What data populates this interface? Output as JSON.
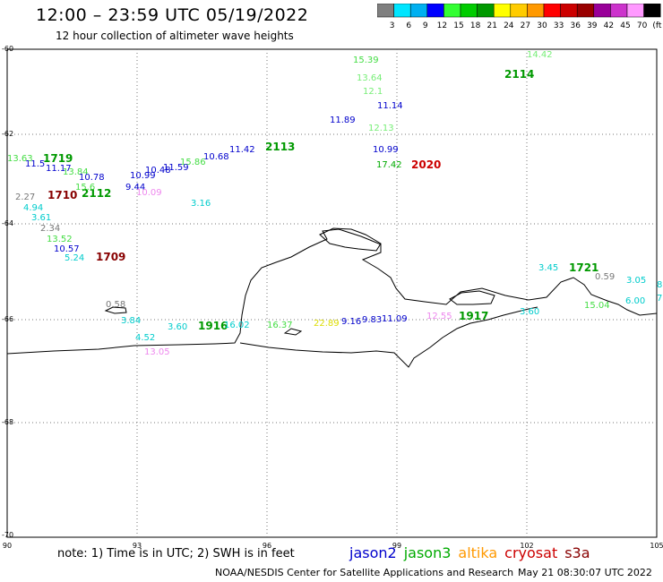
{
  "title": "12:00 – 23:59 UTC 05/19/2022",
  "subtitle": "12 hour collection of altimeter wave heights",
  "colorbar": {
    "colors": [
      "#7f7f7f",
      "#00e5ff",
      "#00b0f0",
      "#0000ff",
      "#33ff33",
      "#00cc00",
      "#009900",
      "#ffff00",
      "#ffcc00",
      "#ff9900",
      "#ff0000",
      "#cc0000",
      "#990000",
      "#990099",
      "#cc33cc",
      "#ff99ff",
      "#000000"
    ],
    "labels": [
      "3",
      "6",
      "9",
      "12",
      "15",
      "18",
      "21",
      "24",
      "27",
      "30",
      "33",
      "36",
      "39",
      "42",
      "45",
      "70",
      "(ft)"
    ]
  },
  "axes": {
    "lat_labels": [
      "-60",
      "-62",
      "-64",
      "-66",
      "-68",
      "-70"
    ],
    "lon_labels": [
      "90",
      "93",
      "96",
      "99",
      "102",
      "105"
    ]
  },
  "points": [
    {
      "t": "15.39",
      "c": "#44dd44"
    },
    {
      "t": "14.42",
      "c": "#77ee77"
    },
    {
      "t": "2114",
      "c": "#009900",
      "b": true
    },
    {
      "t": "13.64",
      "c": "#77ee77"
    },
    {
      "t": "12.1",
      "c": "#77ee77"
    },
    {
      "t": "11.14",
      "c": "#0000cc"
    },
    {
      "t": "11.89",
      "c": "#0000cc"
    },
    {
      "t": "12.13",
      "c": "#77ee77"
    },
    {
      "t": "10.99",
      "c": "#0000cc"
    },
    {
      "t": "17.42",
      "c": "#00aa00"
    },
    {
      "t": "2020",
      "c": "#cc0000",
      "b": true
    },
    {
      "t": "2113",
      "c": "#009900",
      "b": true
    },
    {
      "t": "11.42",
      "c": "#0000cc"
    },
    {
      "t": "10.68",
      "c": "#0000cc"
    },
    {
      "t": "15.86",
      "c": "#44dd44"
    },
    {
      "t": "11.59",
      "c": "#0000cc"
    },
    {
      "t": "10.48",
      "c": "#0000cc"
    },
    {
      "t": "10.99",
      "c": "#0000cc"
    },
    {
      "t": "13.63",
      "c": "#44dd44"
    },
    {
      "t": "1719",
      "c": "#009900",
      "b": true
    },
    {
      "t": "11.5",
      "c": "#0000cc"
    },
    {
      "t": "11.17",
      "c": "#0000cc"
    },
    {
      "t": "13.84",
      "c": "#44dd44"
    },
    {
      "t": "10.78",
      "c": "#0000cc"
    },
    {
      "t": "9.44",
      "c": "#0000cc"
    },
    {
      "t": "10.09",
      "c": "#ee88ee"
    },
    {
      "t": "2.27",
      "c": "#777777"
    },
    {
      "t": "1710",
      "c": "#880000",
      "b": true
    },
    {
      "t": "2112",
      "c": "#009900",
      "b": true
    },
    {
      "t": "15.6",
      "c": "#44dd44"
    },
    {
      "t": "3.16",
      "c": "#00cccc"
    },
    {
      "t": "4.94",
      "c": "#00cccc"
    },
    {
      "t": "3.61",
      "c": "#00cccc"
    },
    {
      "t": "2.34",
      "c": "#777777"
    },
    {
      "t": "13.52",
      "c": "#44dd44"
    },
    {
      "t": "10.57",
      "c": "#0000cc"
    },
    {
      "t": "5.24",
      "c": "#00cccc"
    },
    {
      "t": "1709",
      "c": "#880000",
      "b": true
    },
    {
      "t": "0.58",
      "c": "#777777"
    },
    {
      "t": "3.84",
      "c": "#00cccc"
    },
    {
      "t": "3.60",
      "c": "#00cccc"
    },
    {
      "t": "1916",
      "c": "#009900",
      "b": true
    },
    {
      "t": "16.02",
      "c": "#00cccc"
    },
    {
      "t": "16.37",
      "c": "#44dd44"
    },
    {
      "t": "22.89",
      "c": "#dddd00"
    },
    {
      "t": "9.16",
      "c": "#0000cc"
    },
    {
      "t": "9.83",
      "c": "#0000cc"
    },
    {
      "t": "11.09",
      "c": "#0000cc"
    },
    {
      "t": "12.55",
      "c": "#ee88ee"
    },
    {
      "t": "1917",
      "c": "#009900",
      "b": true
    },
    {
      "t": "4.52",
      "c": "#00cccc"
    },
    {
      "t": "13.05",
      "c": "#ee88ee"
    },
    {
      "t": "3.60",
      "c": "#00cccc"
    },
    {
      "t": "3.45",
      "c": "#00cccc"
    },
    {
      "t": "1721",
      "c": "#009900",
      "b": true
    },
    {
      "t": "0.59",
      "c": "#777777"
    },
    {
      "t": "3.05",
      "c": "#00cccc"
    },
    {
      "t": "8",
      "c": "#00cccc"
    },
    {
      "t": "6.00",
      "c": "#00cccc"
    },
    {
      "t": "7",
      "c": "#00cccc"
    },
    {
      "t": "15.04",
      "c": "#44dd44"
    }
  ],
  "footer": {
    "note": "note: 1) Time is in UTC; 2) SWH is in feet",
    "legend": [
      {
        "name": "jason2",
        "color": "#0000cc"
      },
      {
        "name": "jason3",
        "color": "#00aa00"
      },
      {
        "name": "altika",
        "color": "#ff9900"
      },
      {
        "name": "cryosat",
        "color": "#cc0000"
      },
      {
        "name": "s3a",
        "color": "#880000"
      }
    ],
    "credit": "NOAA/NESDIS Center for Satellite Applications and Research",
    "stamp": "May 21 08:30:07 UTC 2022"
  }
}
